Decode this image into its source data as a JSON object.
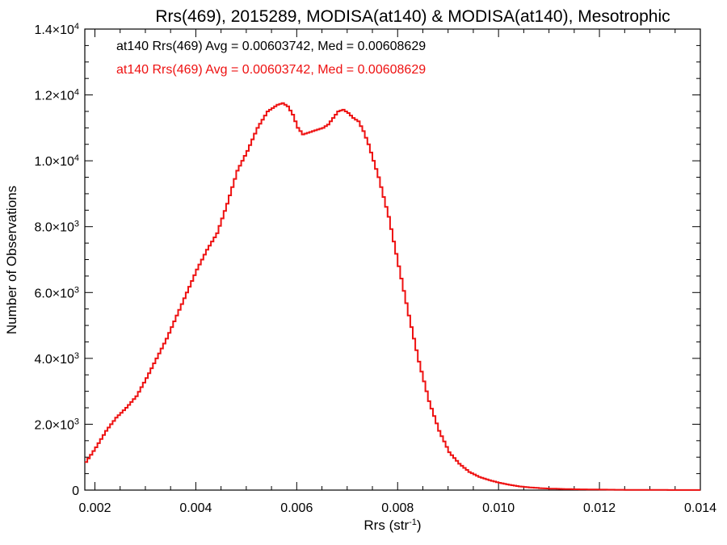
{
  "chart_data": {
    "type": "line",
    "title": "Rrs(469), 2015289, MODISA(at140) & MODISA(at140), Mesotrophic",
    "xlabel_base": "Rrs (str",
    "xlabel_sup": "-1",
    "xlabel_close": ")",
    "ylabel": "Number of Observations",
    "xlim": [
      0.0018,
      0.014
    ],
    "ylim": [
      0,
      14000
    ],
    "x_ticks": [
      {
        "value": 0.002,
        "label": "0.002"
      },
      {
        "value": 0.004,
        "label": "0.004"
      },
      {
        "value": 0.006,
        "label": "0.006"
      },
      {
        "value": 0.008,
        "label": "0.008"
      },
      {
        "value": 0.01,
        "label": "0.010"
      },
      {
        "value": 0.012,
        "label": "0.012"
      },
      {
        "value": 0.014,
        "label": "0.014"
      }
    ],
    "y_ticks": [
      {
        "value": 0,
        "mant": "0",
        "exp": ""
      },
      {
        "value": 2000,
        "mant": "2.0",
        "exp": "3"
      },
      {
        "value": 4000,
        "mant": "4.0",
        "exp": "3"
      },
      {
        "value": 6000,
        "mant": "6.0",
        "exp": "3"
      },
      {
        "value": 8000,
        "mant": "8.0",
        "exp": "3"
      },
      {
        "value": 10000,
        "mant": "1.0",
        "exp": "4"
      },
      {
        "value": 12000,
        "mant": "1.2",
        "exp": "4"
      },
      {
        "value": 14000,
        "mant": "1.4",
        "exp": "4"
      }
    ],
    "annotations": [
      {
        "text": "at140 Rrs(469) Avg = 0.00603742, Med = 0.00608629",
        "color": "#000000"
      },
      {
        "text": "at140 Rrs(469) Avg = 0.00603742, Med = 0.00608629",
        "color": "#ee1111"
      }
    ],
    "series": [
      {
        "color": "#ee1111",
        "x": [
          0.0018,
          0.002,
          0.0022,
          0.0024,
          0.0026,
          0.0028,
          0.003,
          0.0032,
          0.0034,
          0.0036,
          0.0038,
          0.004,
          0.0042,
          0.0044,
          0.0046,
          0.0048,
          0.005,
          0.0052,
          0.0054,
          0.0056,
          0.0057,
          0.0058,
          0.0059,
          0.006,
          0.0061,
          0.0062,
          0.0063,
          0.0064,
          0.0065,
          0.0066,
          0.0067,
          0.0068,
          0.0069,
          0.007,
          0.0071,
          0.0072,
          0.0073,
          0.0074,
          0.0076,
          0.0078,
          0.008,
          0.0082,
          0.0084,
          0.0086,
          0.0088,
          0.009,
          0.0092,
          0.0094,
          0.0096,
          0.0098,
          0.01,
          0.0102,
          0.0104,
          0.0106,
          0.0108,
          0.011,
          0.0115,
          0.012,
          0.0125,
          0.013,
          0.0135,
          0.014
        ],
        "values": [
          850,
          1300,
          1800,
          2200,
          2500,
          2850,
          3400,
          4000,
          4600,
          5300,
          6000,
          6700,
          7300,
          7800,
          8700,
          9700,
          10300,
          11000,
          11500,
          11700,
          11750,
          11650,
          11400,
          11000,
          10800,
          10850,
          10900,
          10950,
          11000,
          11100,
          11300,
          11500,
          11550,
          11450,
          11300,
          11200,
          10900,
          10500,
          9500,
          8300,
          6800,
          5300,
          3900,
          2700,
          1800,
          1150,
          800,
          550,
          400,
          300,
          220,
          160,
          110,
          80,
          60,
          45,
          25,
          15,
          8,
          5,
          3,
          2
        ]
      }
    ]
  }
}
